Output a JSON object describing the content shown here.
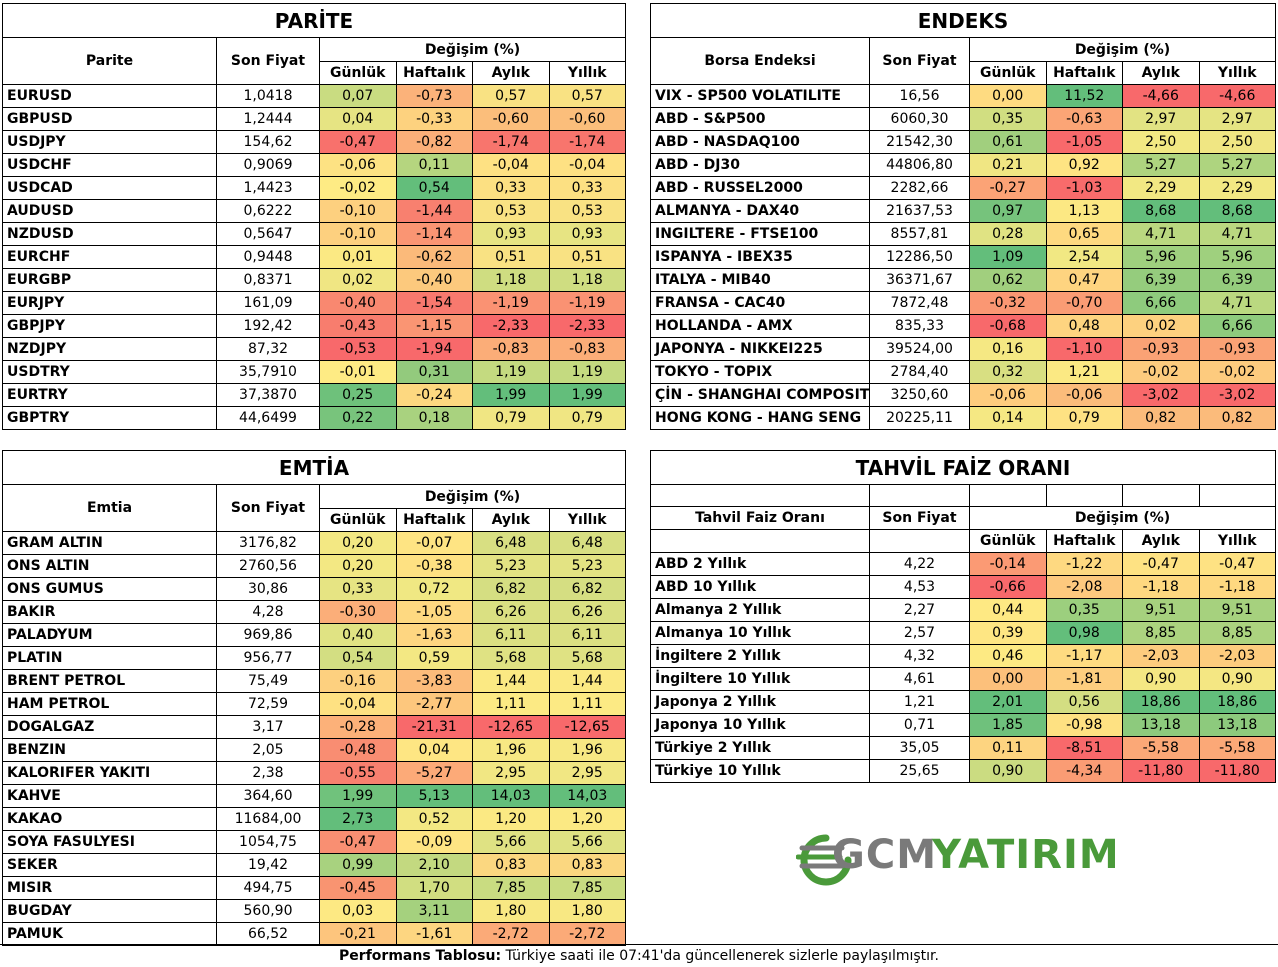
{
  "parite": {
    "title": "PARİTE",
    "headers": {
      "name": "Parite",
      "price": "Son Fiyat",
      "change": "Değişim (%)",
      "d": "Günlük",
      "w": "Haftalık",
      "m": "Aylık",
      "y": "Yıllık"
    },
    "rows": [
      {
        "name": "EURUSD",
        "price": "1,0418",
        "d": "0,07",
        "w": "-0,73",
        "m": "0,57",
        "y": "0,57",
        "cd": "#c9dc81",
        "cw": "#fbb27a",
        "cm": "#f9e283",
        "cy": "#f9e283"
      },
      {
        "name": "GBPUSD",
        "price": "1,2444",
        "d": "0,04",
        "w": "-0,33",
        "m": "-0,60",
        "y": "-0,60",
        "cd": "#e6e483",
        "cw": "#fdd27f",
        "cm": "#fbbe7b",
        "cy": "#fbbe7b"
      },
      {
        "name": "USDJPY",
        "price": "154,62",
        "d": "-0,47",
        "w": "-0,82",
        "m": "-1,74",
        "y": "-1,74",
        "cd": "#f8716c",
        "cw": "#fbaf79",
        "cm": "#f8756d",
        "cy": "#f8756d"
      },
      {
        "name": "USDCHF",
        "price": "0,9069",
        "d": "-0,06",
        "w": "0,11",
        "m": "-0,04",
        "y": "-0,04",
        "cd": "#fde283",
        "cw": "#b5d57f",
        "cm": "#fee183",
        "cy": "#fee183"
      },
      {
        "name": "USDCAD",
        "price": "1,4423",
        "d": "-0,02",
        "w": "0,54",
        "m": "0,33",
        "y": "0,33",
        "cd": "#feeb84",
        "cw": "#63be7b",
        "cm": "#fce082",
        "cy": "#fce082"
      },
      {
        "name": "AUDUSD",
        "price": "0,6222",
        "d": "-0,10",
        "w": "-1,44",
        "m": "0,53",
        "y": "0,53",
        "cd": "#fdd07f",
        "cw": "#f8806f",
        "cm": "#f9e283",
        "cy": "#f9e283"
      },
      {
        "name": "NZDUSD",
        "price": "0,5647",
        "d": "-0,10",
        "w": "-1,14",
        "m": "0,93",
        "y": "0,93",
        "cd": "#fdd07f",
        "cw": "#fa9573",
        "cm": "#e7e483",
        "cy": "#e7e483"
      },
      {
        "name": "EURCHF",
        "price": "0,9448",
        "d": "0,01",
        "w": "-0,62",
        "m": "0,51",
        "y": "0,51",
        "cd": "#fbe983",
        "cw": "#fbba7a",
        "cm": "#f9e283",
        "cy": "#f9e283"
      },
      {
        "name": "EURGBP",
        "price": "0,8371",
        "d": "0,02",
        "w": "-0,40",
        "m": "1,18",
        "y": "1,18",
        "cd": "#f0e683",
        "cw": "#fcc97d",
        "cm": "#cfdd81",
        "cy": "#cfdd81"
      },
      {
        "name": "EURJPY",
        "price": "161,09",
        "d": "-0,40",
        "w": "-1,54",
        "m": "-1,19",
        "y": "-1,19",
        "cd": "#f98870",
        "cw": "#f8796e",
        "cm": "#fa9273",
        "cy": "#fa9273"
      },
      {
        "name": "GBPJPY",
        "price": "192,42",
        "d": "-0,43",
        "w": "-1,15",
        "m": "-2,33",
        "y": "-2,33",
        "cd": "#f87d6e",
        "cw": "#fa9573",
        "cm": "#f8696b",
        "cy": "#f8696b"
      },
      {
        "name": "NZDJPY",
        "price": "87,32",
        "d": "-0,53",
        "w": "-1,94",
        "m": "-0,83",
        "y": "-0,83",
        "cd": "#f8696b",
        "cw": "#f8696b",
        "cm": "#fbad78",
        "cy": "#fbad78"
      },
      {
        "name": "USDTRY",
        "price": "35,7910",
        "d": "-0,01",
        "w": "0,31",
        "m": "1,19",
        "y": "1,19",
        "cd": "#feeb84",
        "cw": "#93ca7d",
        "cm": "#c4da80",
        "cy": "#c4da80"
      },
      {
        "name": "EURTRY",
        "price": "37,3870",
        "d": "0,25",
        "w": "-0,24",
        "m": "1,99",
        "y": "1,99",
        "cd": "#6ec17b",
        "cw": "#fdd880",
        "cm": "#63be7b",
        "cy": "#63be7b"
      },
      {
        "name": "GBPTRY",
        "price": "44,6499",
        "d": "0,22",
        "w": "0,18",
        "m": "0,79",
        "y": "0,79",
        "cd": "#78c47c",
        "cw": "#a9d27f",
        "cm": "#f0e683",
        "cy": "#f0e683"
      }
    ]
  },
  "endeks": {
    "title": "ENDEKS",
    "headers": {
      "name": "Borsa Endeksi",
      "price": "Son Fiyat",
      "change": "Değişim (%)",
      "d": "Günlük",
      "w": "Haftalık",
      "m": "Aylık",
      "y": "Yıllık"
    },
    "rows": [
      {
        "name": "VIX  - SP500 VOLATILITE",
        "price": "16,56",
        "d": "0,00",
        "w": "11,52",
        "m": "-4,66",
        "y": "-4,66",
        "cd": "#fedb81",
        "cw": "#63be7b",
        "cm": "#f8696b",
        "cy": "#f8696b"
      },
      {
        "name": "ABD - S&P500",
        "price": "6060,30",
        "d": "0,35",
        "w": "-0,63",
        "m": "2,97",
        "y": "2,97",
        "cd": "#d1de81",
        "cw": "#fba576",
        "cm": "#e2e383",
        "cy": "#e5e483"
      },
      {
        "name": "ABD - NASDAQ100",
        "price": "21542,30",
        "d": "0,61",
        "w": "-1,05",
        "m": "2,50",
        "y": "2,50",
        "cd": "#a1cf7e",
        "cw": "#f8696b",
        "cm": "#f2e883",
        "cy": "#f0e683"
      },
      {
        "name": "ABD - DJ30",
        "price": "44806,80",
        "d": "0,21",
        "w": "0,92",
        "m": "5,27",
        "y": "5,27",
        "cd": "#f0e683",
        "cw": "#fee483",
        "cm": "#aed47f",
        "cy": "#aed47f"
      },
      {
        "name": "ABD - RUSSEL2000",
        "price": "2282,66",
        "d": "-0,27",
        "w": "-1,03",
        "m": "2,29",
        "y": "2,29",
        "cd": "#fba376",
        "cw": "#f86b6b",
        "cm": "#f2e883",
        "cy": "#f2e883"
      },
      {
        "name": "ALMANYA - DAX40",
        "price": "21637,53",
        "d": "0,97",
        "w": "1,13",
        "m": "8,68",
        "y": "8,68",
        "cd": "#76c37c",
        "cw": "#fce883",
        "cm": "#63be7b",
        "cy": "#63be7b"
      },
      {
        "name": "INGILTERE - FTSE100",
        "price": "8557,81",
        "d": "0,28",
        "w": "0,65",
        "m": "4,71",
        "y": "4,71",
        "cd": "#e0e383",
        "cw": "#fed980",
        "cm": "#bad880",
        "cy": "#bad880"
      },
      {
        "name": "ISPANYA - IBEX35",
        "price": "12286,50",
        "d": "1,09",
        "w": "2,54",
        "m": "5,96",
        "y": "5,96",
        "cd": "#63be7b",
        "cw": "#f1e883",
        "cm": "#9fd07e",
        "cy": "#9fd07e"
      },
      {
        "name": "ITALYA - MIB40",
        "price": "36371,67",
        "d": "0,62",
        "w": "0,47",
        "m": "6,39",
        "y": "6,39",
        "cd": "#a1cf7e",
        "cw": "#fed480",
        "cm": "#95cc7d",
        "cy": "#95cc7d"
      },
      {
        "name": "FRANSA - CAC40",
        "price": "7872,48",
        "d": "-0,32",
        "w": "-0,70",
        "m": "6,66",
        "y": "4,71",
        "cd": "#fa9773",
        "cw": "#fa9c74",
        "cm": "#8ecb7d",
        "cy": "#bad880"
      },
      {
        "name": "HOLLANDA - AMX",
        "price": "835,33",
        "d": "-0,68",
        "w": "0,48",
        "m": "0,02",
        "y": "6,66",
        "cd": "#f8696b",
        "cw": "#fed480",
        "cm": "#fdd17f",
        "cy": "#8ecb7d"
      },
      {
        "name": "JAPONYA - NIKKEI225",
        "price": "39524,00",
        "d": "0,16",
        "w": "-1,10",
        "m": "-0,93",
        "y": "-0,93",
        "cd": "#f5e883",
        "cw": "#f8696b",
        "cm": "#faa275",
        "cy": "#faa275"
      },
      {
        "name": "TOKYO - TOPIX",
        "price": "2784,40",
        "d": "0,32",
        "w": "1,21",
        "m": "-0,02",
        "y": "-0,02",
        "cd": "#d8df82",
        "cw": "#fbe983",
        "cm": "#fdcb7e",
        "cy": "#fdcb7e"
      },
      {
        "name": "ÇİN - SHANGHAI COMPOSITE",
        "price": "3250,60",
        "d": "-0,06",
        "w": "-0,06",
        "m": "-3,02",
        "y": "-3,02",
        "cd": "#fecc7e",
        "cw": "#fbbc7b",
        "cm": "#f8696b",
        "cy": "#f8696b"
      },
      {
        "name": "HONG KONG - HANG SENG",
        "price": "20225,11",
        "d": "0,14",
        "w": "0,79",
        "m": "0,82",
        "y": "0,82",
        "cd": "#f5e883",
        "cw": "#fee283",
        "cm": "#fbbb7b",
        "cy": "#fbbb7b"
      }
    ]
  },
  "emtia": {
    "title": "EMTİA",
    "headers": {
      "name": "Emtia",
      "price": "Son Fiyat",
      "change": "Değişim (%)",
      "d": "Günlük",
      "w": "Haftalık",
      "m": "Aylık",
      "y": "Yıllık"
    },
    "rows": [
      {
        "name": "GRAM ALTIN",
        "price": "3176,82",
        "d": "0,20",
        "w": "-0,07",
        "m": "6,48",
        "y": "6,48",
        "cd": "#f3e883",
        "cw": "#fee483",
        "cm": "#d8df82",
        "cy": "#d8df82"
      },
      {
        "name": "ONS ALTIN",
        "price": "2760,56",
        "d": "0,20",
        "w": "-0,38",
        "m": "5,23",
        "y": "5,23",
        "cd": "#f3e883",
        "cw": "#fee182",
        "cm": "#e3e383",
        "cy": "#e3e383"
      },
      {
        "name": "ONS GUMUS",
        "price": "30,86",
        "d": "0,33",
        "w": "0,72",
        "m": "6,82",
        "y": "6,82",
        "cd": "#e6e483",
        "cw": "#f0e883",
        "cm": "#d5de82",
        "cy": "#d5de82"
      },
      {
        "name": "BAKIR",
        "price": "4,28",
        "d": "-0,30",
        "w": "-1,05",
        "m": "6,26",
        "y": "6,26",
        "cd": "#fbae79",
        "cw": "#fed981",
        "cm": "#dae082",
        "cy": "#dae082"
      },
      {
        "name": "PALADYUM",
        "price": "969,86",
        "d": "0,40",
        "w": "-1,63",
        "m": "6,11",
        "y": "6,11",
        "cd": "#e0e383",
        "cw": "#fed681",
        "cm": "#dbe082",
        "cy": "#dbe082"
      },
      {
        "name": "PLATIN",
        "price": "956,77",
        "d": "0,54",
        "w": "0,59",
        "m": "5,68",
        "y": "5,68",
        "cd": "#d3de82",
        "cw": "#f3e883",
        "cm": "#dfe283",
        "cy": "#dfe283"
      },
      {
        "name": "BRENT PETROL",
        "price": "75,49",
        "d": "-0,16",
        "w": "-3,83",
        "m": "1,44",
        "y": "1,44",
        "cd": "#fdd07f",
        "cw": "#fcbc7b",
        "cm": "#fbe983",
        "cy": "#fbe983"
      },
      {
        "name": "HAM PETROL",
        "price": "72,59",
        "d": "-0,04",
        "w": "-2,77",
        "m": "1,11",
        "y": "1,11",
        "cd": "#fee182",
        "cw": "#fdc77d",
        "cm": "#fcea84",
        "cy": "#fcea84"
      },
      {
        "name": "DOGALGAZ",
        "price": "3,17",
        "d": "-0,28",
        "w": "-21,31",
        "m": "-12,65",
        "y": "-12,65",
        "cd": "#fcb179",
        "cw": "#f8696b",
        "cm": "#f8696b",
        "cy": "#f8696b"
      },
      {
        "name": "BENZIN",
        "price": "2,05",
        "d": "-0,48",
        "w": "0,04",
        "m": "1,96",
        "y": "1,96",
        "cd": "#f98d72",
        "cw": "#fee683",
        "cm": "#f7e883",
        "cy": "#f7e883"
      },
      {
        "name": "KALORIFER YAKITI",
        "price": "2,38",
        "d": "-0,55",
        "w": "-5,27",
        "m": "2,95",
        "y": "2,95",
        "cd": "#f8806f",
        "cw": "#fcaa78",
        "cm": "#f1e783",
        "cy": "#f1e783"
      },
      {
        "name": "KAHVE",
        "price": "364,60",
        "d": "1,99",
        "w": "5,13",
        "m": "14,03",
        "y": "14,03",
        "cd": "#70c27c",
        "cw": "#63be7b",
        "cm": "#63be7b",
        "cy": "#63be7b"
      },
      {
        "name": "KAKAO",
        "price": "11684,00",
        "d": "2,73",
        "w": "0,52",
        "m": "1,20",
        "y": "1,20",
        "cd": "#63be7b",
        "cw": "#f3e883",
        "cm": "#fbe983",
        "cy": "#fbe983"
      },
      {
        "name": "SOYA FASULYESI",
        "price": "1054,75",
        "d": "-0,47",
        "w": "-0,09",
        "m": "5,66",
        "y": "5,66",
        "cd": "#f98f72",
        "cw": "#fee483",
        "cm": "#dfe283",
        "cy": "#dfe283"
      },
      {
        "name": "SEKER",
        "price": "19,42",
        "d": "0,99",
        "w": "2,10",
        "m": "0,83",
        "y": "0,83",
        "cd": "#a8d27f",
        "cw": "#c3d980",
        "cm": "#fbd780",
        "cy": "#fbd780"
      },
      {
        "name": "MISIR",
        "price": "494,75",
        "d": "-0,45",
        "w": "1,70",
        "m": "7,85",
        "y": "7,85",
        "cd": "#f99471",
        "cw": "#d1de81",
        "cm": "#c9dc81",
        "cy": "#c9dc81"
      },
      {
        "name": "BUGDAY",
        "price": "560,90",
        "d": "0,03",
        "w": "3,11",
        "m": "1,80",
        "y": "1,80",
        "cd": "#fde983",
        "cw": "#a5d17e",
        "cm": "#f8e883",
        "cy": "#f8e883"
      },
      {
        "name": "PAMUK",
        "price": "66,52",
        "d": "-0,21",
        "w": "-1,61",
        "m": "-2,72",
        "y": "-2,72",
        "cd": "#fdc57d",
        "cw": "#fdd681",
        "cm": "#fbaa78",
        "cy": "#fbaa78"
      }
    ]
  },
  "tahvil": {
    "title": "TAHVİL FAİZ ORANI",
    "headers": {
      "name": "Tahvil Faiz Oranı",
      "price": "Son Fiyat",
      "change": "Değişim (%)",
      "d": "Günlük",
      "w": "Haftalık",
      "m": "Aylık",
      "y": "Yıllık"
    },
    "rows": [
      {
        "name": "ABD 2 Yıllık",
        "price": "4,22",
        "d": "-0,14",
        "w": "-1,22",
        "m": "-0,47",
        "y": "-0,47",
        "cd": "#fb9a74",
        "cw": "#fed981",
        "cm": "#fee283",
        "cy": "#fee283"
      },
      {
        "name": "ABD 10 Yıllık",
        "price": "4,53",
        "d": "-0,66",
        "w": "-2,08",
        "m": "-1,18",
        "y": "-1,18",
        "cd": "#f8696b",
        "cw": "#fdc97e",
        "cm": "#fed880",
        "cy": "#fed880"
      },
      {
        "name": "Almanya 2 Yıllık",
        "price": "2,27",
        "d": "0,44",
        "w": "0,35",
        "m": "9,51",
        "y": "9,51",
        "cd": "#fee983",
        "cw": "#9ccf7e",
        "cm": "#a6d17e",
        "cy": "#a6d17e"
      },
      {
        "name": "Almanya 10 Yıllık",
        "price": "2,57",
        "d": "0,39",
        "w": "0,98",
        "m": "8,85",
        "y": "8,85",
        "cd": "#fee683",
        "cw": "#63be7b",
        "cm": "#acd37f",
        "cy": "#acd37f"
      },
      {
        "name": "İngiltere 2 Yıllık",
        "price": "4,32",
        "d": "0,46",
        "w": "-1,17",
        "m": "-2,03",
        "y": "-2,03",
        "cd": "#fdea83",
        "cw": "#fedb81",
        "cm": "#fdcc7e",
        "cy": "#fdcc7e"
      },
      {
        "name": "İngiltere 10 Yıllık",
        "price": "4,61",
        "d": "0,00",
        "w": "-1,81",
        "m": "0,90",
        "y": "0,90",
        "cd": "#fcc07b",
        "cw": "#fdce7f",
        "cm": "#f4e783",
        "cy": "#f4e783"
      },
      {
        "name": "Japonya 2 Yıllık",
        "price": "1,21",
        "d": "2,01",
        "w": "0,56",
        "m": "18,86",
        "y": "18,86",
        "cd": "#63be7b",
        "cw": "#d3de82",
        "cm": "#63be7b",
        "cy": "#63be7b"
      },
      {
        "name": "Japonya 10 Yıllık",
        "price": "0,71",
        "d": "1,85",
        "w": "-0,98",
        "m": "13,18",
        "y": "13,18",
        "cd": "#6fc17c",
        "cw": "#fee182",
        "cm": "#8dca7d",
        "cy": "#8dca7d"
      },
      {
        "name": "Türkiye 2 Yıllık",
        "price": "35,05",
        "d": "0,11",
        "w": "-8,51",
        "m": "-5,58",
        "y": "-5,58",
        "cd": "#fdd480",
        "cw": "#f8696b",
        "cm": "#fba877",
        "cy": "#fba877"
      },
      {
        "name": "Türkiye 10 Yıllık",
        "price": "25,65",
        "d": "0,90",
        "w": "-4,34",
        "m": "-11,80",
        "y": "-11,80",
        "cd": "#cbdc81",
        "cw": "#fa9c74",
        "cm": "#f8696b",
        "cy": "#f8696b"
      }
    ]
  },
  "logo": {
    "text_gcm": "GCM",
    "text_yatirim": "YATIRIM",
    "brand_green": "#4a9a3a",
    "brand_gray": "#7a7a7a"
  },
  "footer": {
    "bold": "Performans Tablosu:",
    "text": " Türkiye saati ile 07:41'da güncellenerek sizlerle paylaşılmıştır."
  }
}
